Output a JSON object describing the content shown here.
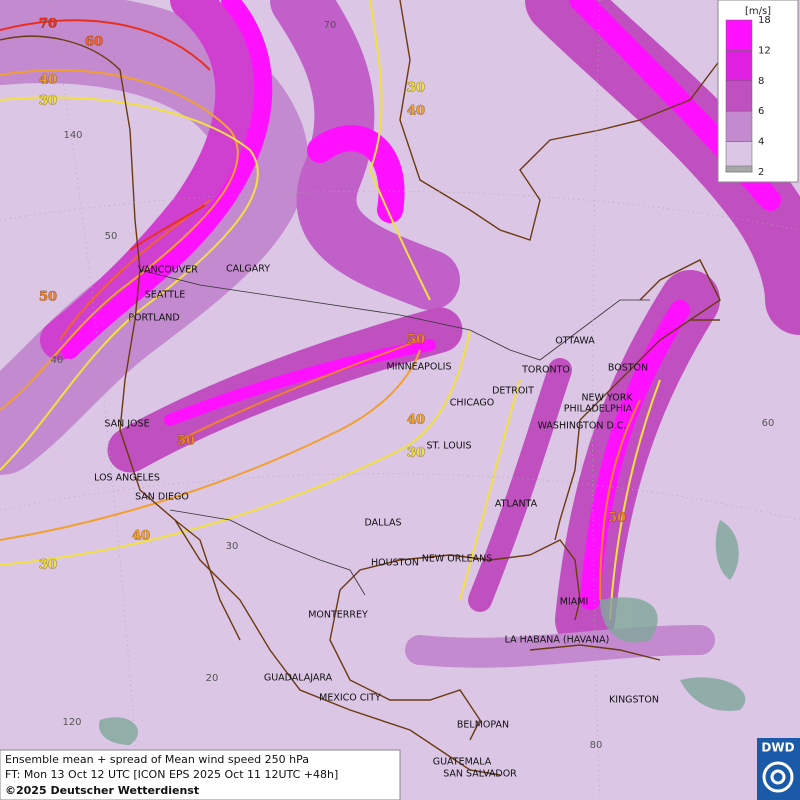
{
  "map": {
    "cities": [
      "VANCOUVER",
      "CALGARY",
      "SEATTLE",
      "PORTLAND",
      "MINNEAPOLIS",
      "OTTAWA",
      "TORONTO",
      "BOSTON",
      "DETROIT",
      "CHICAGO",
      "NEW YORK",
      "PHILADELPHIA",
      "WASHINGTON D.C.",
      "SAN JOSE",
      "ST. LOUIS",
      "LOS ANGELES",
      "SAN DIEGO",
      "ATLANTA",
      "DALLAS",
      "HOUSTON",
      "NEW ORLEANS",
      "MIAMI",
      "MONTERREY",
      "LA HABANA (HAVANA)",
      "GUADALAJARA",
      "MEXICO CITY",
      "KINGSTON",
      "BELMOPAN",
      "GUATEMALA",
      "SAN SALVADOR"
    ],
    "graticule_labels": [
      "70",
      "140",
      "50",
      "40",
      "60",
      "30",
      "20",
      "120",
      "80"
    ],
    "contour_labels": [
      {
        "label": "70",
        "color": "#e83020"
      },
      {
        "label": "60",
        "color": "#f06030"
      },
      {
        "label": "40",
        "color": "#f0a030"
      },
      {
        "label": "30",
        "color": "#f0e040"
      },
      {
        "label": "30",
        "color": "#f0e040"
      },
      {
        "label": "40",
        "color": "#f0a030"
      },
      {
        "label": "50",
        "color": "#f08030"
      },
      {
        "label": "50",
        "color": "#f08030"
      },
      {
        "label": "40",
        "color": "#f0a030"
      },
      {
        "label": "30",
        "color": "#f0e040"
      },
      {
        "label": "50",
        "color": "#f08030"
      },
      {
        "label": "40",
        "color": "#f0a030"
      },
      {
        "label": "30",
        "color": "#f0e040"
      },
      {
        "label": "50",
        "color": "#f08030"
      }
    ]
  },
  "legend": {
    "unit": "[m/s]",
    "levels": [
      {
        "value": 18,
        "color": "#ff10ff"
      },
      {
        "value": 12,
        "color": "#e020e0"
      },
      {
        "value": 8,
        "color": "#c050c0"
      },
      {
        "value": 6,
        "color": "#c48ad0"
      },
      {
        "value": 4,
        "color": "#dcc6e6"
      },
      {
        "value": 2,
        "color": "#a8a8a8"
      }
    ]
  },
  "footer": {
    "line1": "Ensemble mean + spread of Mean wind speed 250 hPa",
    "line2": "FT: Mon 13 Oct 12 UTC [ICON EPS 2025 Oct 11 12UTC +48h]",
    "line3": "©2025 Deutscher Wetterdienst"
  },
  "logo": "DWD"
}
